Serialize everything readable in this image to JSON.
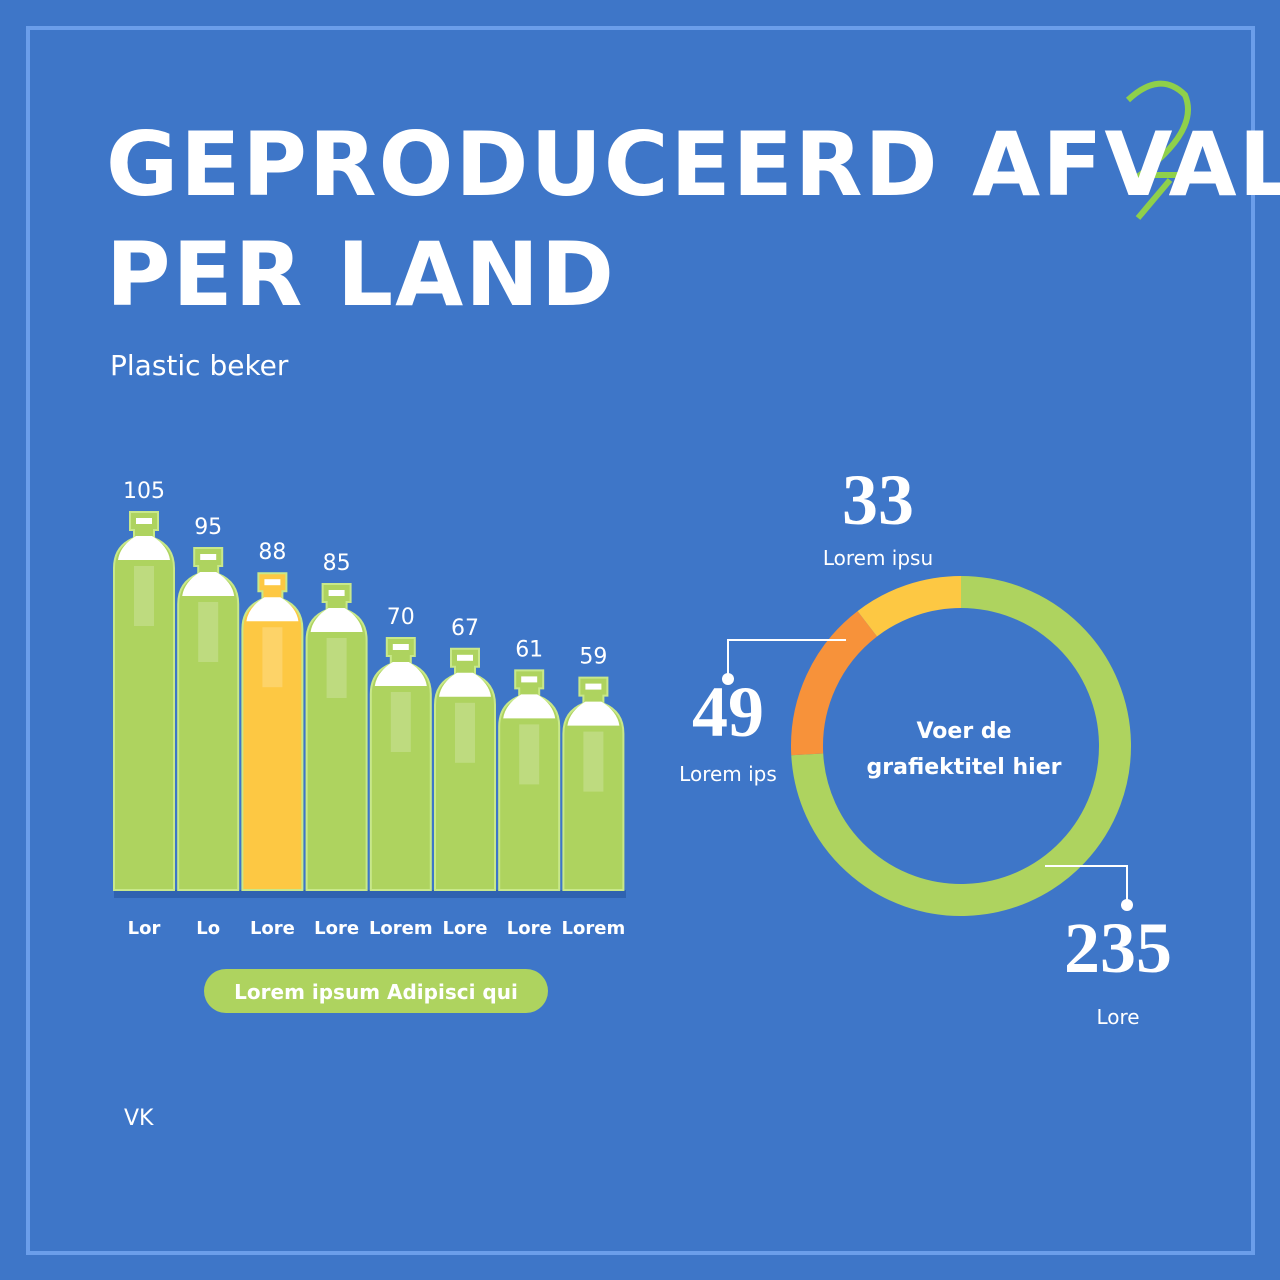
{
  "title": [
    "GEPRODUCEERD AFVAL",
    "PER LAND"
  ],
  "subtitle": "Plastic beker",
  "chart_data": [
    {
      "type": "bar",
      "categories": [
        "Lor",
        "Lo",
        "Lore",
        "Lore",
        "Lorem",
        "Lore",
        "Lore",
        "Lorem"
      ],
      "values": [
        105,
        95,
        88,
        85,
        70,
        67,
        61,
        59
      ],
      "colors": [
        "#aed35f",
        "#aed35f",
        "#fdc843",
        "#aed35f",
        "#aed35f",
        "#aed35f",
        "#aed35f",
        "#aed35f"
      ]
    },
    {
      "type": "donut",
      "title": "Voer de grafiektitel hier",
      "categories": [
        "Lore",
        "Lorem ips",
        "Lorem ipsu"
      ],
      "values": [
        235,
        49,
        33
      ],
      "colors": [
        "#aed35f",
        "#f7923a",
        "#fdc843"
      ]
    }
  ],
  "button": "Lorem ipsum Adipisci qui",
  "footer": "VK"
}
